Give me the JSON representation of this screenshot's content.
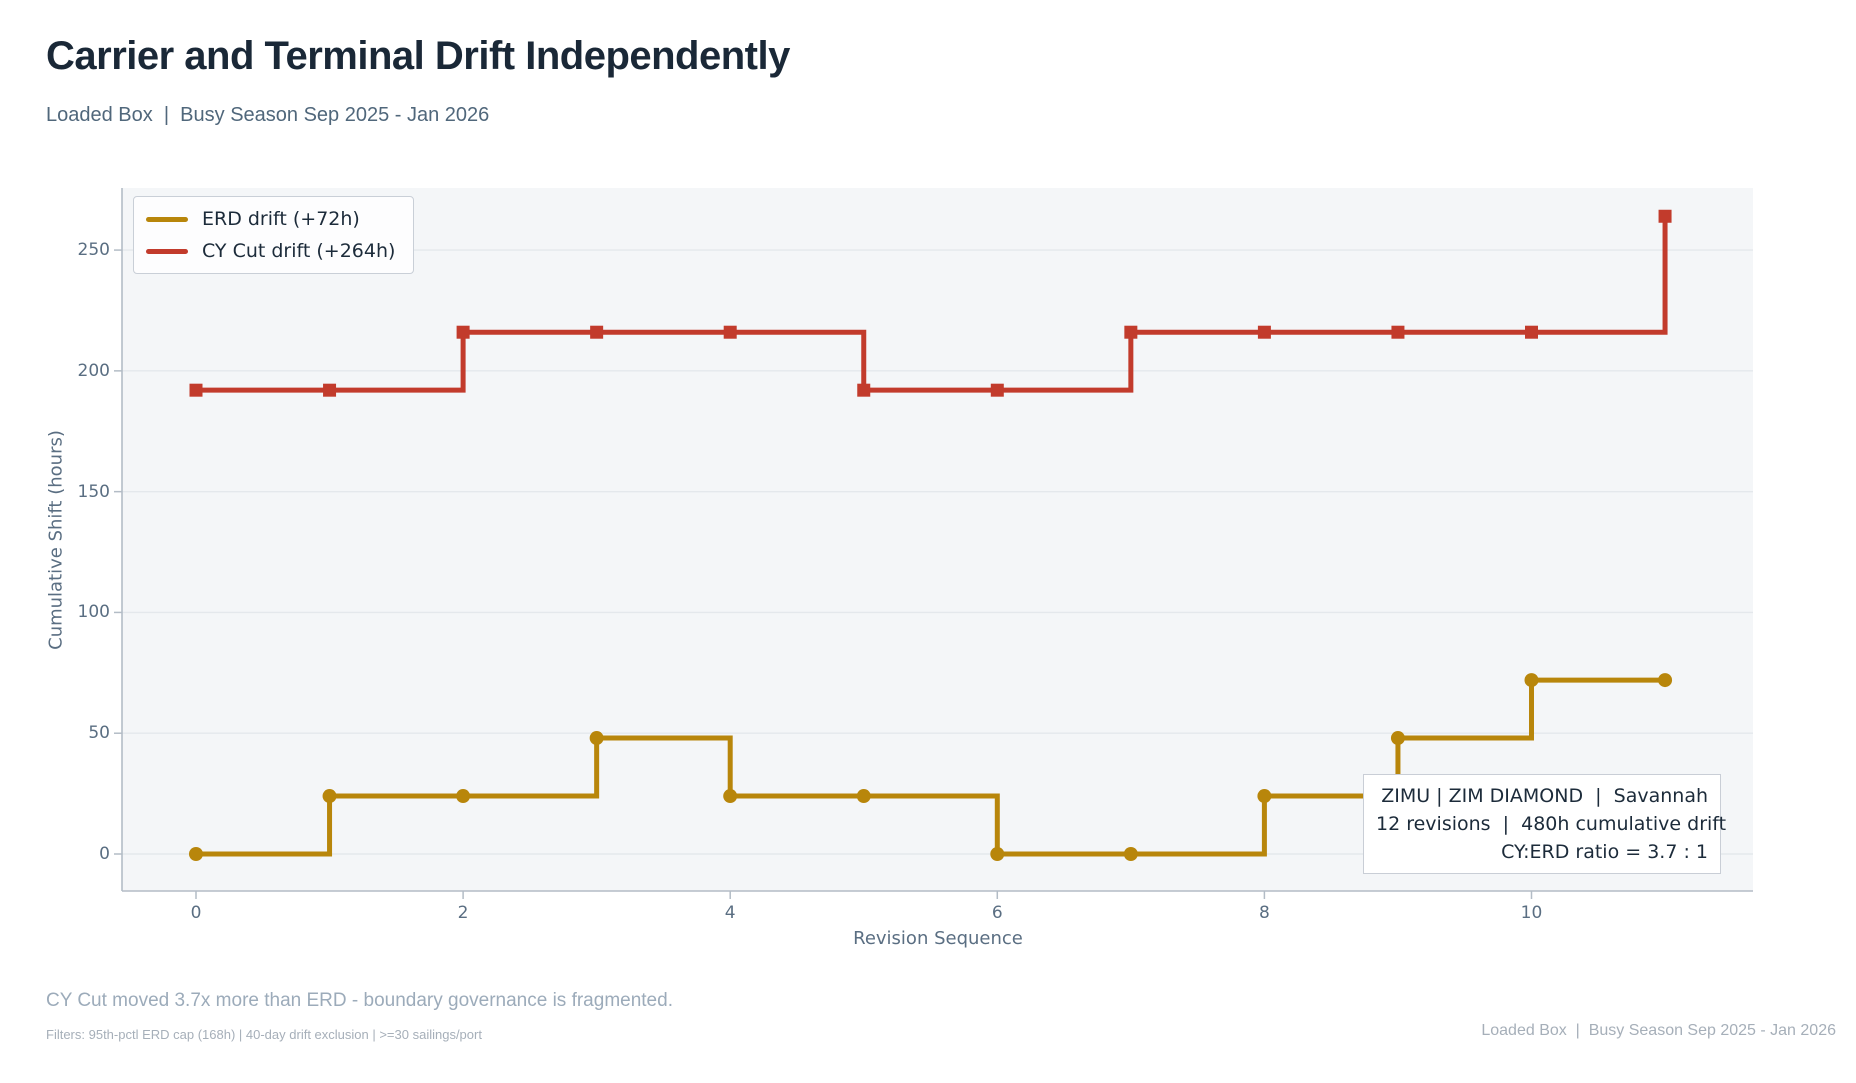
{
  "header": {
    "title": "Carrier and Terminal Drift Independently",
    "subtitle": "Loaded Box  |  Busy Season Sep 2025 - Jan 2026"
  },
  "chart_data": {
    "type": "line",
    "step": "post",
    "title": "Carrier and Terminal Drift Independently",
    "xlabel": "Revision Sequence",
    "ylabel": "Cumulative Shift (hours)",
    "x": [
      0,
      1,
      2,
      3,
      4,
      5,
      6,
      7,
      8,
      9,
      10,
      11
    ],
    "series": [
      {
        "name": "ERD drift (+72h)",
        "color": "#b8860b",
        "marker": "circle",
        "values": [
          0,
          24,
          24,
          48,
          24,
          24,
          0,
          0,
          24,
          48,
          72,
          72
        ]
      },
      {
        "name": "CY Cut drift (+264h)",
        "color": "#c23b2c",
        "marker": "square",
        "values": [
          192,
          192,
          216,
          216,
          216,
          192,
          192,
          216,
          216,
          216,
          216,
          264
        ]
      }
    ],
    "xticks": [
      0,
      2,
      4,
      6,
      8,
      10
    ],
    "yticks": [
      0,
      50,
      100,
      150,
      200,
      250
    ],
    "xlim": [
      -0.55,
      11.66
    ],
    "ylim": [
      -15,
      276
    ],
    "grid": "horizontal",
    "legend_position": "upper left",
    "style": {
      "plot_bg": "#f4f6f8",
      "grid_color": "#e4e8ec",
      "axis_color": "#b3bcc6",
      "tick_label_color": "#5a6e82"
    }
  },
  "annotation": {
    "line1": "ZIMU | ZIM DIAMOND  |  Savannah",
    "line2": "12 revisions  |  480h cumulative drift",
    "line3": "CY:ERD ratio = 3.7 : 1"
  },
  "footer": {
    "note": "CY Cut moved 3.7x more than ERD - boundary governance is fragmented.",
    "filters": "Filters: 95th-pctl ERD cap (168h) | 40-day drift exclusion | >=30 sailings/port",
    "context": "Loaded Box  |  Busy Season Sep 2025 - Jan 2026"
  }
}
